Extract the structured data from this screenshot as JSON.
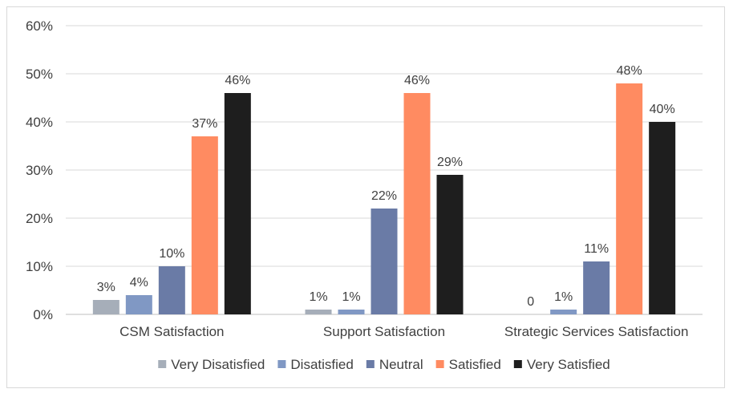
{
  "chart_data": {
    "type": "bar",
    "categories": [
      "CSM Satisfaction",
      "Support Satisfaction",
      "Strategic Services Satisfaction"
    ],
    "ylim": [
      0,
      60
    ],
    "yticks": [
      0,
      10,
      20,
      30,
      40,
      50,
      60
    ],
    "ytick_labels": [
      "0%",
      "10%",
      "20%",
      "30%",
      "40%",
      "50%",
      "60%"
    ],
    "grid": true,
    "legend_position": "bottom",
    "series": [
      {
        "name": "Very Disatisfied",
        "color": "#a6aeb9",
        "values": [
          3,
          1,
          0
        ],
        "labels": [
          "3%",
          "1%",
          "0"
        ]
      },
      {
        "name": "Disatisfied",
        "color": "#8098c4",
        "values": [
          4,
          1,
          1
        ],
        "labels": [
          "4%",
          "1%",
          "1%"
        ]
      },
      {
        "name": "Neutral",
        "color": "#6a7ba6",
        "values": [
          10,
          22,
          11
        ],
        "labels": [
          "10%",
          "22%",
          "11%"
        ]
      },
      {
        "name": "Satisfied",
        "color": "#ff8b61",
        "values": [
          37,
          46,
          48
        ],
        "labels": [
          "37%",
          "46%",
          "48%"
        ]
      },
      {
        "name": "Very Satisfied",
        "color": "#1e1e1e",
        "values": [
          46,
          29,
          40
        ],
        "labels": [
          "46%",
          "29%",
          "40%"
        ]
      }
    ]
  }
}
